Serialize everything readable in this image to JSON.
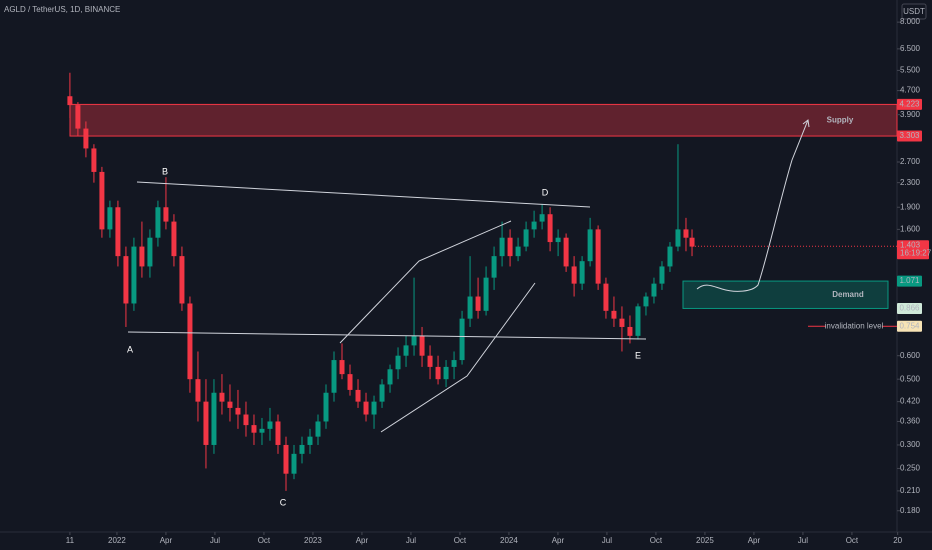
{
  "chart_data": {
    "type": "candlestick",
    "title": "AGLD / TetherUS, 1D, BINANCE",
    "currency": "USDT",
    "log_scale": true,
    "grid": false,
    "up_color": "#089981",
    "down_color": "#f23645",
    "xlim": [
      -7.16,
      47.76
    ],
    "ylim": [
      0.155,
      9.5
    ],
    "xticks": [
      {
        "value": -2.88,
        "label": "11"
      },
      {
        "value": 0,
        "label": "2022"
      },
      {
        "value": 3,
        "label": "Apr"
      },
      {
        "value": 6,
        "label": "Jul"
      },
      {
        "value": 9,
        "label": "Oct"
      },
      {
        "value": 12,
        "label": "2023"
      },
      {
        "value": 15,
        "label": "Apr"
      },
      {
        "value": 18,
        "label": "Jul"
      },
      {
        "value": 21,
        "label": "Oct"
      },
      {
        "value": 24,
        "label": "2024"
      },
      {
        "value": 27,
        "label": "Apr"
      },
      {
        "value": 30,
        "label": "Jul"
      },
      {
        "value": 33,
        "label": "Oct"
      },
      {
        "value": 36,
        "label": "2025"
      },
      {
        "value": 39,
        "label": "Apr"
      },
      {
        "value": 42,
        "label": "Jul"
      },
      {
        "value": 45,
        "label": "Oct"
      },
      {
        "value": 47.8,
        "label": "20"
      }
    ],
    "yticks": [
      {
        "value": 8,
        "label": "8.000"
      },
      {
        "value": 6.5,
        "label": "6.500"
      },
      {
        "value": 5.5,
        "label": "5.500"
      },
      {
        "value": 4.7,
        "label": "4.700"
      },
      {
        "value": 3.9,
        "label": "3.900"
      },
      {
        "value": 2.7,
        "label": "2.700"
      },
      {
        "value": 2.3,
        "label": "2.300"
      },
      {
        "value": 1.9,
        "label": "1.900"
      },
      {
        "value": 1.6,
        "label": "1.600"
      },
      {
        "value": 0.6,
        "label": "0.600"
      },
      {
        "value": 0.5,
        "label": "0.500"
      },
      {
        "value": 0.42,
        "label": "0.420"
      },
      {
        "value": 0.36,
        "label": "0.360"
      },
      {
        "value": 0.3,
        "label": "0.300"
      },
      {
        "value": 0.25,
        "label": "0.250"
      },
      {
        "value": 0.21,
        "label": "0.210"
      },
      {
        "value": 0.18,
        "label": "0.180"
      }
    ],
    "x": [
      -2.88,
      -2.39,
      -1.9,
      -1.41,
      -0.92,
      -0.43,
      0.06,
      0.55,
      1.04,
      1.53,
      2.02,
      2.51,
      3.0,
      3.49,
      3.98,
      4.47,
      4.96,
      5.45,
      5.94,
      6.43,
      6.92,
      7.41,
      7.9,
      8.39,
      8.88,
      9.37,
      9.86,
      10.35,
      10.84,
      11.33,
      11.82,
      12.31,
      12.8,
      13.29,
      13.78,
      14.27,
      14.76,
      15.25,
      15.74,
      16.23,
      16.72,
      17.21,
      17.7,
      18.19,
      18.68,
      19.17,
      19.66,
      20.15,
      20.64,
      21.13,
      21.62,
      22.11,
      22.6,
      23.09,
      23.58,
      24.07,
      24.56,
      25.05,
      25.54,
      26.03,
      26.52,
      27.01,
      27.5,
      27.99,
      28.48,
      28.97,
      29.46,
      29.94,
      30.43,
      30.92,
      31.41,
      31.9,
      32.39,
      32.88,
      33.37,
      33.86,
      34.35,
      34.84,
      35.21
    ],
    "open": [
      4.5,
      4.2,
      3.5,
      3.0,
      2.5,
      1.6,
      1.9,
      1.3,
      0.9,
      1.4,
      1.2,
      1.5,
      1.9,
      1.7,
      1.3,
      0.9,
      0.5,
      0.42,
      0.3,
      0.45,
      0.42,
      0.4,
      0.38,
      0.35,
      0.33,
      0.34,
      0.36,
      0.3,
      0.24,
      0.28,
      0.3,
      0.32,
      0.36,
      0.45,
      0.58,
      0.52,
      0.46,
      0.42,
      0.38,
      0.42,
      0.48,
      0.54,
      0.6,
      0.65,
      0.7,
      0.6,
      0.55,
      0.5,
      0.55,
      0.58,
      0.8,
      0.95,
      0.85,
      1.1,
      1.3,
      1.5,
      1.3,
      1.4,
      1.6,
      1.7,
      1.8,
      1.45,
      1.5,
      1.2,
      1.05,
      1.25,
      1.6,
      1.05,
      0.85,
      0.8,
      0.75,
      0.7,
      0.88,
      0.95,
      1.05,
      1.2,
      1.4,
      1.6,
      1.5
    ],
    "high": [
      5.4,
      4.3,
      3.7,
      3.1,
      2.6,
      2.0,
      2.0,
      1.4,
      1.5,
      1.7,
      1.6,
      2.0,
      2.4,
      1.8,
      1.4,
      0.95,
      0.62,
      0.5,
      0.5,
      0.52,
      0.48,
      0.46,
      0.42,
      0.38,
      0.37,
      0.4,
      0.38,
      0.32,
      0.3,
      0.32,
      0.34,
      0.38,
      0.48,
      0.62,
      0.66,
      0.56,
      0.5,
      0.45,
      0.44,
      0.5,
      0.56,
      0.64,
      0.7,
      1.1,
      0.75,
      0.65,
      0.6,
      0.58,
      0.62,
      0.85,
      1.3,
      1.1,
      1.2,
      1.4,
      1.7,
      1.6,
      1.5,
      1.7,
      1.85,
      1.95,
      1.9,
      1.6,
      1.55,
      1.3,
      1.3,
      1.75,
      1.65,
      1.1,
      0.95,
      0.88,
      0.82,
      0.9,
      0.98,
      1.1,
      1.25,
      1.45,
      3.1,
      1.75,
      1.6
    ],
    "low": [
      3.8,
      3.3,
      2.8,
      2.3,
      1.5,
      1.5,
      1.2,
      0.75,
      0.85,
      1.1,
      1.1,
      1.4,
      1.6,
      1.2,
      0.85,
      0.45,
      0.36,
      0.25,
      0.28,
      0.38,
      0.36,
      0.34,
      0.32,
      0.3,
      0.3,
      0.31,
      0.28,
      0.21,
      0.23,
      0.26,
      0.28,
      0.3,
      0.34,
      0.42,
      0.5,
      0.44,
      0.4,
      0.36,
      0.34,
      0.4,
      0.45,
      0.5,
      0.55,
      0.6,
      0.55,
      0.5,
      0.48,
      0.47,
      0.5,
      0.56,
      0.75,
      0.8,
      0.82,
      1.0,
      1.2,
      1.2,
      1.25,
      1.35,
      1.5,
      1.6,
      1.35,
      1.3,
      1.15,
      0.95,
      1.0,
      1.2,
      1.0,
      0.8,
      0.75,
      0.62,
      0.66,
      0.68,
      0.82,
      0.9,
      1.0,
      1.15,
      1.35,
      1.35,
      1.3
    ],
    "close": [
      4.2,
      3.5,
      3.0,
      2.5,
      1.6,
      1.9,
      1.3,
      0.9,
      1.4,
      1.2,
      1.5,
      1.9,
      1.7,
      1.3,
      0.9,
      0.5,
      0.42,
      0.3,
      0.45,
      0.42,
      0.4,
      0.38,
      0.35,
      0.33,
      0.34,
      0.36,
      0.3,
      0.24,
      0.28,
      0.3,
      0.32,
      0.36,
      0.45,
      0.58,
      0.52,
      0.46,
      0.42,
      0.38,
      0.42,
      0.48,
      0.54,
      0.6,
      0.65,
      0.7,
      0.6,
      0.55,
      0.5,
      0.55,
      0.58,
      0.8,
      0.95,
      0.85,
      1.1,
      1.3,
      1.5,
      1.3,
      1.4,
      1.6,
      1.7,
      1.8,
      1.45,
      1.5,
      1.2,
      1.05,
      1.25,
      1.6,
      1.05,
      0.85,
      0.8,
      0.75,
      0.7,
      0.88,
      0.95,
      1.05,
      1.2,
      1.4,
      1.6,
      1.5,
      1.4
    ],
    "zones": [
      {
        "name": "Supply",
        "range": [
          3.303,
          4.223
        ],
        "color": "#f23645"
      },
      {
        "name": "Demand",
        "range": [
          0.866,
          1.071
        ],
        "color": "#089981"
      }
    ],
    "level": {
      "name": "invalidation level",
      "value": 0.754,
      "color": "#f23645"
    },
    "last_price": 1.403,
    "countdown": "16:19:27",
    "points": [
      "A",
      "B",
      "C",
      "D",
      "E"
    ]
  }
}
